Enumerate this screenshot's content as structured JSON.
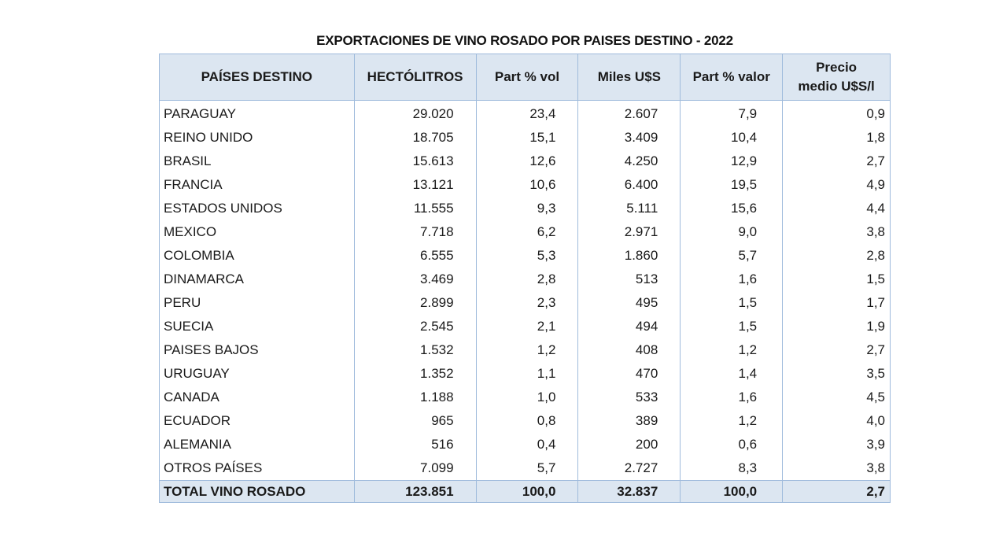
{
  "title": "EXPORTACIONES DE VINO ROSADO POR PAISES DESTINO - 2022",
  "colors": {
    "header_bg": "#dce6f1",
    "border": "#9fbbdc"
  },
  "columns": [
    "PAÍSES DESTINO",
    "HECTÓLITROS",
    "Part % vol",
    "Miles U$S",
    "Part % valor",
    "Precio medio U$S/l"
  ],
  "column_lines": {
    "precio_line1": "Precio",
    "precio_line2": "medio U$S/l"
  },
  "rows": [
    {
      "pais": "PARAGUAY",
      "hl": "29.020",
      "vol": "23,4",
      "miles": "2.607",
      "valor": "7,9",
      "precio": "0,9"
    },
    {
      "pais": "REINO UNIDO",
      "hl": "18.705",
      "vol": "15,1",
      "miles": "3.409",
      "valor": "10,4",
      "precio": "1,8"
    },
    {
      "pais": "BRASIL",
      "hl": "15.613",
      "vol": "12,6",
      "miles": "4.250",
      "valor": "12,9",
      "precio": "2,7"
    },
    {
      "pais": "FRANCIA",
      "hl": "13.121",
      "vol": "10,6",
      "miles": "6.400",
      "valor": "19,5",
      "precio": "4,9"
    },
    {
      "pais": "ESTADOS UNIDOS",
      "hl": "11.555",
      "vol": "9,3",
      "miles": "5.111",
      "valor": "15,6",
      "precio": "4,4"
    },
    {
      "pais": "MEXICO",
      "hl": "7.718",
      "vol": "6,2",
      "miles": "2.971",
      "valor": "9,0",
      "precio": "3,8"
    },
    {
      "pais": "COLOMBIA",
      "hl": "6.555",
      "vol": "5,3",
      "miles": "1.860",
      "valor": "5,7",
      "precio": "2,8"
    },
    {
      "pais": "DINAMARCA",
      "hl": "3.469",
      "vol": "2,8",
      "miles": "513",
      "valor": "1,6",
      "precio": "1,5"
    },
    {
      "pais": "PERU",
      "hl": "2.899",
      "vol": "2,3",
      "miles": "495",
      "valor": "1,5",
      "precio": "1,7"
    },
    {
      "pais": "SUECIA",
      "hl": "2.545",
      "vol": "2,1",
      "miles": "494",
      "valor": "1,5",
      "precio": "1,9"
    },
    {
      "pais": "PAISES BAJOS",
      "hl": "1.532",
      "vol": "1,2",
      "miles": "408",
      "valor": "1,2",
      "precio": "2,7"
    },
    {
      "pais": "URUGUAY",
      "hl": "1.352",
      "vol": "1,1",
      "miles": "470",
      "valor": "1,4",
      "precio": "3,5"
    },
    {
      "pais": "CANADA",
      "hl": "1.188",
      "vol": "1,0",
      "miles": "533",
      "valor": "1,6",
      "precio": "4,5"
    },
    {
      "pais": "ECUADOR",
      "hl": "965",
      "vol": "0,8",
      "miles": "389",
      "valor": "1,2",
      "precio": "4,0"
    },
    {
      "pais": "ALEMANIA",
      "hl": "516",
      "vol": "0,4",
      "miles": "200",
      "valor": "0,6",
      "precio": "3,9"
    },
    {
      "pais": "OTROS PAÍSES",
      "hl": "7.099",
      "vol": "5,7",
      "miles": "2.727",
      "valor": "8,3",
      "precio": "3,8"
    }
  ],
  "total": {
    "pais": "TOTAL VINO ROSADO",
    "hl": "123.851",
    "vol": "100,0",
    "miles": "32.837",
    "valor": "100,0",
    "precio": "2,7"
  }
}
